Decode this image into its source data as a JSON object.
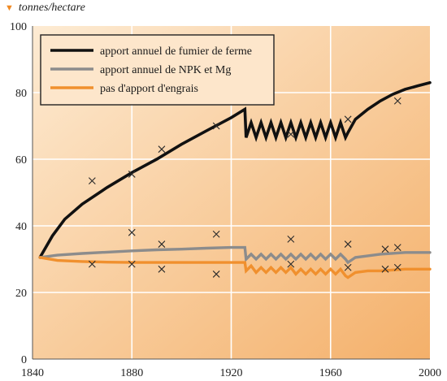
{
  "chart_data": {
    "type": "line",
    "ylabel": "tonnes/hectare",
    "xlim": [
      1840,
      2000
    ],
    "ylim": [
      0,
      100
    ],
    "xticks": [
      1840,
      1880,
      1920,
      1960,
      2000
    ],
    "yticks": [
      0,
      20,
      40,
      60,
      80,
      100
    ],
    "grid": true,
    "legend_position": "top-left",
    "series": [
      {
        "name": "apport annuel de fumier de ferme",
        "color": "#111111",
        "line": [
          [
            1843,
            30.5
          ],
          [
            1848,
            37
          ],
          [
            1853,
            42
          ],
          [
            1860,
            46.5
          ],
          [
            1870,
            51.5
          ],
          [
            1880,
            56
          ],
          [
            1890,
            60
          ],
          [
            1900,
            64.5
          ],
          [
            1910,
            68.5
          ],
          [
            1920,
            72.5
          ],
          [
            1925.5,
            75
          ],
          [
            1926,
            66.5
          ],
          [
            1928,
            71
          ],
          [
            1930,
            66.5
          ],
          [
            1932,
            71
          ],
          [
            1934,
            66.5
          ],
          [
            1936,
            71
          ],
          [
            1938,
            66.5
          ],
          [
            1940,
            71
          ],
          [
            1942,
            66.5
          ],
          [
            1944,
            71
          ],
          [
            1946,
            66.5
          ],
          [
            1948,
            71
          ],
          [
            1950,
            66.5
          ],
          [
            1952,
            71
          ],
          [
            1954,
            66.5
          ],
          [
            1956,
            71
          ],
          [
            1958,
            66.5
          ],
          [
            1960,
            71
          ],
          [
            1962,
            66.5
          ],
          [
            1964,
            71
          ],
          [
            1966,
            66.5
          ],
          [
            1967,
            68
          ],
          [
            1970,
            72
          ],
          [
            1975,
            75
          ],
          [
            1980,
            77.5
          ],
          [
            1985,
            79.5
          ],
          [
            1990,
            81
          ],
          [
            1995,
            82
          ],
          [
            2000,
            83
          ]
        ],
        "points": [
          [
            1864,
            53.5
          ],
          [
            1880,
            55.5
          ],
          [
            1892,
            63
          ],
          [
            1914,
            70
          ],
          [
            1944,
            67.5
          ],
          [
            1967,
            72
          ],
          [
            1987,
            77.5
          ]
        ]
      },
      {
        "name": "apport annuel de NPK et Mg",
        "color": "#8c8c8c",
        "line": [
          [
            1843,
            30.5
          ],
          [
            1850,
            31.2
          ],
          [
            1860,
            31.7
          ],
          [
            1870,
            32.1
          ],
          [
            1880,
            32.5
          ],
          [
            1890,
            32.8
          ],
          [
            1900,
            33
          ],
          [
            1910,
            33.3
          ],
          [
            1920,
            33.5
          ],
          [
            1925.5,
            33.5
          ],
          [
            1926,
            30
          ],
          [
            1928,
            31.5
          ],
          [
            1930,
            30
          ],
          [
            1932,
            31.5
          ],
          [
            1934,
            30
          ],
          [
            1936,
            31.5
          ],
          [
            1938,
            30
          ],
          [
            1940,
            31.5
          ],
          [
            1942,
            30
          ],
          [
            1944,
            31.5
          ],
          [
            1946,
            30
          ],
          [
            1948,
            31.5
          ],
          [
            1950,
            30
          ],
          [
            1952,
            31.5
          ],
          [
            1954,
            30
          ],
          [
            1956,
            31.5
          ],
          [
            1958,
            30
          ],
          [
            1960,
            31.5
          ],
          [
            1962,
            30
          ],
          [
            1964,
            31.5
          ],
          [
            1966,
            30
          ],
          [
            1967,
            29
          ],
          [
            1970,
            30.5
          ],
          [
            1975,
            31
          ],
          [
            1980,
            31.5
          ],
          [
            1990,
            32
          ],
          [
            2000,
            32
          ]
        ],
        "points": [
          [
            1864,
            28.5
          ],
          [
            1880,
            38
          ],
          [
            1892,
            34.5
          ],
          [
            1914,
            37.5
          ],
          [
            1944,
            36
          ],
          [
            1967,
            34.5
          ],
          [
            1982,
            33
          ],
          [
            1987,
            33.5
          ]
        ]
      },
      {
        "name": "pas d'apport d'engrais",
        "color": "#f0902e",
        "line": [
          [
            1843,
            30.5
          ],
          [
            1850,
            29.6
          ],
          [
            1860,
            29.3
          ],
          [
            1870,
            29.1
          ],
          [
            1880,
            29
          ],
          [
            1900,
            29
          ],
          [
            1920,
            29
          ],
          [
            1925.5,
            29
          ],
          [
            1926,
            26.5
          ],
          [
            1928,
            28
          ],
          [
            1930,
            26
          ],
          [
            1932,
            27.5
          ],
          [
            1934,
            26
          ],
          [
            1936,
            27.5
          ],
          [
            1938,
            26
          ],
          [
            1940,
            27.5
          ],
          [
            1942,
            26
          ],
          [
            1944,
            27.5
          ],
          [
            1946,
            25.5
          ],
          [
            1948,
            27
          ],
          [
            1950,
            25.5
          ],
          [
            1952,
            27
          ],
          [
            1954,
            25.5
          ],
          [
            1956,
            27
          ],
          [
            1958,
            25.5
          ],
          [
            1960,
            27
          ],
          [
            1962,
            25.5
          ],
          [
            1964,
            27
          ],
          [
            1966,
            25
          ],
          [
            1967,
            24.5
          ],
          [
            1970,
            26
          ],
          [
            1975,
            26.5
          ],
          [
            1980,
            26.5
          ],
          [
            1990,
            27
          ],
          [
            2000,
            27
          ]
        ],
        "points": [
          [
            1880,
            28.5
          ],
          [
            1892,
            27
          ],
          [
            1914,
            25.5
          ],
          [
            1944,
            28.5
          ],
          [
            1967,
            27.5
          ],
          [
            1982,
            27
          ],
          [
            1987,
            27.5
          ]
        ]
      }
    ]
  }
}
